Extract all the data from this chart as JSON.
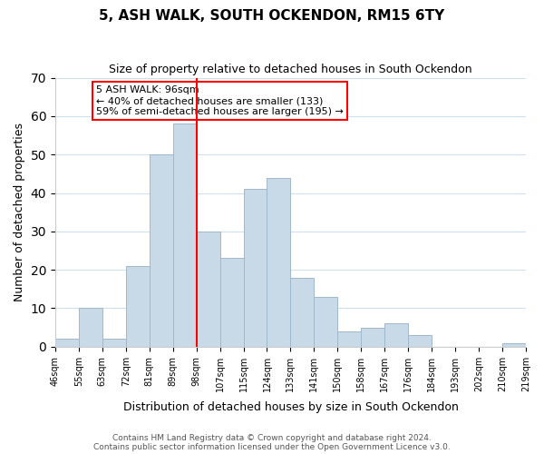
{
  "title": "5, ASH WALK, SOUTH OCKENDON, RM15 6TY",
  "subtitle": "Size of property relative to detached houses in South Ockendon",
  "xlabel": "Distribution of detached houses by size in South Ockendon",
  "ylabel": "Number of detached properties",
  "footer1": "Contains HM Land Registry data © Crown copyright and database right 2024.",
  "footer2": "Contains public sector information licensed under the Open Government Licence v3.0.",
  "bin_labels": [
    "46sqm",
    "55sqm",
    "63sqm",
    "72sqm",
    "81sqm",
    "89sqm",
    "98sqm",
    "107sqm",
    "115sqm",
    "124sqm",
    "133sqm",
    "141sqm",
    "150sqm",
    "158sqm",
    "167sqm",
    "176sqm",
    "184sqm",
    "193sqm",
    "202sqm",
    "210sqm",
    "219sqm"
  ],
  "bar_heights": [
    2,
    10,
    2,
    21,
    50,
    58,
    30,
    23,
    41,
    44,
    18,
    13,
    4,
    5,
    6,
    3,
    0,
    0,
    0,
    1
  ],
  "bar_color": "#c8d9e8",
  "bar_edge_color": "#a0b8cc",
  "vline_x_label": "98sqm",
  "vline_color": "red",
  "annotation_title": "5 ASH WALK: 96sqm",
  "annotation_line1": "← 40% of detached houses are smaller (133)",
  "annotation_line2": "59% of semi-detached houses are larger (195) →",
  "annotation_box_edge": "red",
  "ylim": [
    0,
    70
  ],
  "yticks": [
    0,
    10,
    20,
    30,
    40,
    50,
    60,
    70
  ],
  "background_color": "#ffffff",
  "grid_color": "#d0e0f0"
}
